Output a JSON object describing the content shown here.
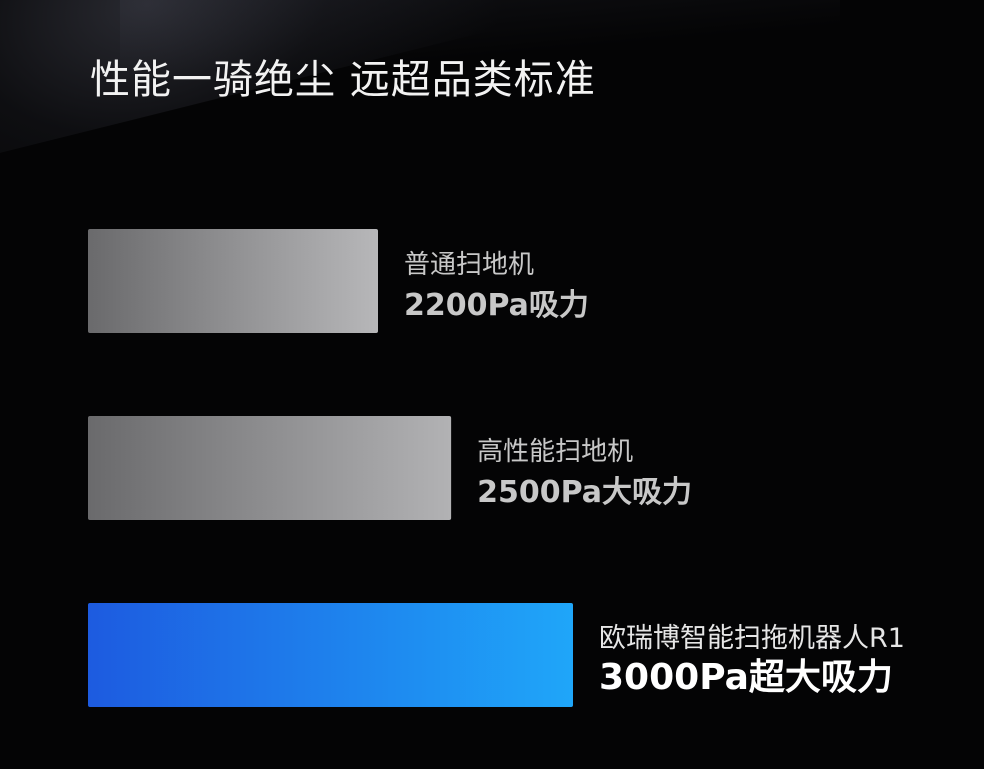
{
  "title": "性能一骑绝尘 远超品类标准",
  "chart_data": {
    "type": "bar",
    "orientation": "horizontal",
    "title": "性能一骑绝尘 远超品类标准",
    "unit": "Pa",
    "categories": [
      "普通扫地机",
      "高性能扫地机",
      "欧瑞博智能扫拖机器人R1"
    ],
    "values": [
      2200,
      2500,
      3000
    ],
    "value_labels": [
      "2200Pa吸力",
      "2500Pa大吸力",
      "3000Pa超大吸力"
    ],
    "bar_colors": [
      [
        "#6a6a6c",
        "#b7b7b9"
      ],
      [
        "#6a6a6c",
        "#b2b2b4"
      ],
      [
        "#1d5be0",
        "#1fa6f9"
      ]
    ],
    "label_name_colors": [
      "#c8c8c8",
      "#c8c8c8",
      "#e6e6e6"
    ],
    "label_value_colors": [
      "#c8c8c8",
      "#c8c8c8",
      "#ffffff"
    ],
    "background": "#040405",
    "grid": false,
    "legend": "none"
  }
}
